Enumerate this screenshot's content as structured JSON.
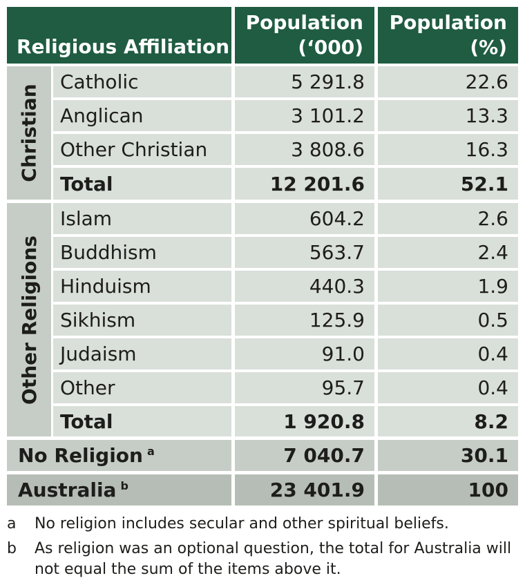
{
  "header": {
    "affiliation": "Religious Affiliation",
    "population_line1": "Population",
    "population_line2": "(‘000)",
    "percent_line1": "Population",
    "percent_line2": "(%)"
  },
  "christian": {
    "label": "Christian",
    "rows": [
      {
        "name": "Catholic",
        "population": "5 291.8",
        "percent": "22.6"
      },
      {
        "name": "Anglican",
        "population": "3 101.2",
        "percent": "13.3"
      },
      {
        "name": "Other Christian",
        "population": "3 808.6",
        "percent": "16.3"
      }
    ],
    "total": {
      "name": "Total",
      "population": "12 201.6",
      "percent": "52.1"
    }
  },
  "other_religions": {
    "label": "Other Religions",
    "rows": [
      {
        "name": "Islam",
        "population": "604.2",
        "percent": "2.6"
      },
      {
        "name": "Buddhism",
        "population": "563.7",
        "percent": "2.4"
      },
      {
        "name": "Hinduism",
        "population": "440.3",
        "percent": "1.9"
      },
      {
        "name": "Sikhism",
        "population": "125.9",
        "percent": "0.5"
      },
      {
        "name": "Judaism",
        "population": "91.0",
        "percent": "0.4"
      },
      {
        "name": "Other",
        "population": "95.7",
        "percent": "0.4"
      }
    ],
    "total": {
      "name": "Total",
      "population": "1 920.8",
      "percent": "8.2"
    }
  },
  "no_religion": {
    "name": "No Religion",
    "note_mark": "a",
    "population": "7 040.7",
    "percent": "30.1"
  },
  "australia": {
    "name": "Australia",
    "note_mark": "b",
    "population": "23 401.9",
    "percent": "100"
  },
  "footnotes": [
    {
      "letter": "a",
      "text": "No religion includes secular and other spiritual beliefs."
    },
    {
      "letter": "b",
      "text": "As religion was an optional question, the total for Australia will not equal the sum of the items above it."
    }
  ]
}
